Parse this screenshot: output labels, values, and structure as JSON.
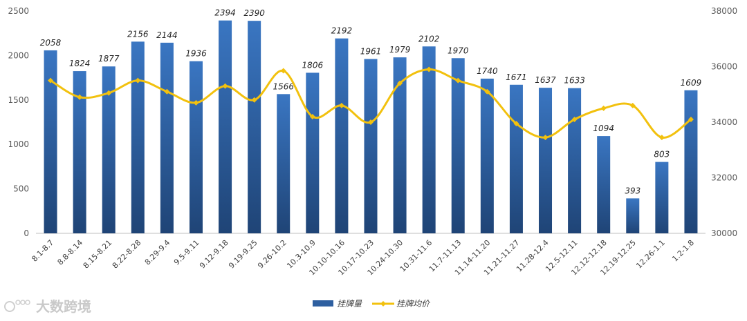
{
  "watermark": {
    "text": "大数跨境",
    "icon": "paw-logo-icon"
  },
  "chart_data": {
    "type": "bar",
    "categories": [
      "8.1-8.7",
      "8.8-8.14",
      "8.15-8.21",
      "8.22-8.28",
      "8.29-9.4",
      "9.5-9.11",
      "9.12-9.18",
      "9.19-9.25",
      "9.26-10.2",
      "10.3-10.9",
      "10.10-10.16",
      "10.17-10.23",
      "10.24-10.30",
      "10.31-11.6",
      "11.7-11.13",
      "11.14-11.20",
      "11.21-11.27",
      "11.28-12.4",
      "12.5-12.11",
      "12.12-12.18",
      "12.19-12.25",
      "12.26-1.1",
      "1.2-1.8"
    ],
    "series": [
      {
        "name": "挂牌量",
        "type": "bar",
        "axis": "left",
        "color": "#2e5fa0",
        "values": [
          2058,
          1824,
          1877,
          2156,
          2144,
          1936,
          2394,
          2390,
          1566,
          1806,
          2192,
          1961,
          1979,
          2102,
          1970,
          1740,
          1671,
          1637,
          1633,
          1094,
          393,
          803,
          1609
        ]
      },
      {
        "name": "挂牌均价",
        "type": "line",
        "axis": "right",
        "color": "#f2c10e",
        "values": [
          35500,
          34900,
          35050,
          35500,
          35100,
          34700,
          35300,
          34800,
          35850,
          34200,
          34600,
          34000,
          35400,
          35900,
          35500,
          35100,
          33950,
          33450,
          34100,
          34500,
          34600,
          33450,
          34100
        ]
      }
    ],
    "y_left": {
      "min": 0,
      "max": 2500,
      "ticks": [
        0,
        500,
        1000,
        1500,
        2000,
        2500
      ]
    },
    "y_right": {
      "min": 30000,
      "max": 38000,
      "ticks": [
        30000,
        32000,
        34000,
        36000,
        38000
      ]
    },
    "legend": "bottom-center",
    "grid": false
  }
}
